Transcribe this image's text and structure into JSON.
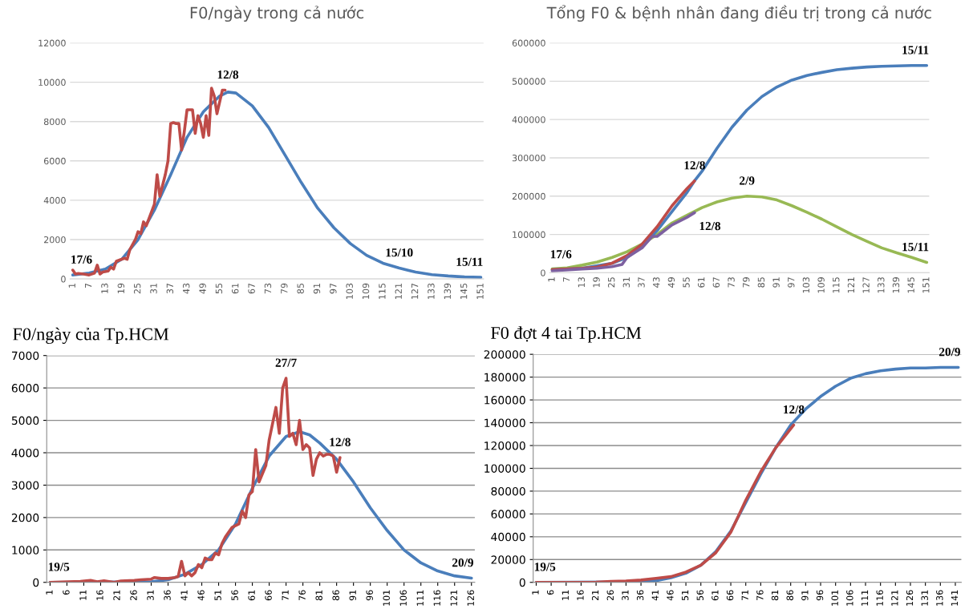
{
  "chart_data": [
    {
      "type": "line",
      "title": "F0/ngày trong cả nước",
      "xlim": [
        0,
        152
      ],
      "xticks": [
        1,
        7,
        13,
        19,
        25,
        31,
        37,
        43,
        49,
        55,
        61,
        67,
        73,
        79,
        85,
        91,
        97,
        103,
        109,
        115,
        121,
        127,
        133,
        139,
        145,
        151
      ],
      "ylim": [
        0,
        12000
      ],
      "yticks": [
        0,
        2000,
        4000,
        6000,
        8000,
        10000,
        12000
      ],
      "grid": "y",
      "legend": false,
      "series": [
        {
          "color": "#4a7ebb",
          "x": [
            1,
            7,
            13,
            19,
            25,
            31,
            37,
            43,
            49,
            55,
            58,
            61,
            67,
            73,
            79,
            85,
            91,
            97,
            103,
            109,
            115,
            121,
            127,
            133,
            139,
            145,
            151
          ],
          "values": [
            200,
            300,
            500,
            1000,
            2000,
            3500,
            5300,
            7200,
            8500,
            9300,
            9500,
            9450,
            8800,
            7700,
            6300,
            4900,
            3600,
            2600,
            1800,
            1200,
            800,
            550,
            350,
            220,
            150,
            100,
            80
          ]
        },
        {
          "color": "#be4b48",
          "x": [
            1,
            2,
            3,
            5,
            7,
            9,
            10,
            11,
            12,
            14,
            15,
            16,
            17,
            18,
            19,
            20,
            21,
            22,
            24,
            25,
            26,
            27,
            28,
            31,
            32,
            33,
            35,
            36,
            37,
            38,
            39,
            40,
            41,
            42,
            43,
            44,
            45,
            46,
            47,
            48,
            49,
            50,
            51,
            52,
            53,
            54,
            55,
            56,
            57
          ],
          "values": [
            450,
            250,
            280,
            250,
            200,
            300,
            700,
            250,
            350,
            400,
            600,
            500,
            900,
            950,
            1000,
            1050,
            1000,
            1500,
            2000,
            2400,
            2300,
            2900,
            2700,
            3800,
            5300,
            4200,
            5300,
            6000,
            7900,
            7950,
            7900,
            7900,
            6550,
            7500,
            8600,
            8600,
            8600,
            7400,
            8300,
            7900,
            7200,
            8300,
            7300,
            9700,
            9300,
            8400,
            9000,
            9600,
            9600
          ]
        }
      ],
      "annotations": [
        {
          "text": "17/6",
          "x": 1,
          "y": 200
        },
        {
          "text": "12/8",
          "x": 58,
          "y": 9600
        },
        {
          "text": "15/10",
          "x": 121,
          "y": 550
        },
        {
          "text": "15/11",
          "x": 151,
          "y": 80
        }
      ]
    },
    {
      "type": "line",
      "title": "Tổng F0 & bệnh nhân đang điều trị trong cả nước",
      "xlim": [
        0,
        152
      ],
      "xticks": [
        1,
        7,
        13,
        19,
        25,
        31,
        37,
        43,
        49,
        55,
        61,
        67,
        73,
        79,
        85,
        91,
        97,
        103,
        109,
        115,
        121,
        127,
        133,
        139,
        145,
        151
      ],
      "ylim": [
        0,
        600000
      ],
      "yticks": [
        0,
        100000,
        200000,
        300000,
        400000,
        500000,
        600000
      ],
      "grid": "y",
      "legend": false,
      "series": [
        {
          "color": "#98b954",
          "x": [
            1,
            7,
            13,
            19,
            25,
            31,
            37,
            43,
            49,
            55,
            61,
            67,
            73,
            79,
            85,
            91,
            97,
            103,
            109,
            115,
            121,
            127,
            133,
            139,
            145,
            151
          ],
          "values": [
            10000,
            13000,
            20000,
            28000,
            40000,
            55000,
            75000,
            100000,
            130000,
            150000,
            170000,
            185000,
            195000,
            200000,
            198000,
            190000,
            175000,
            158000,
            140000,
            120000,
            100000,
            82000,
            65000,
            52000,
            40000,
            27000
          ]
        },
        {
          "color": "#4a7ebb",
          "x": [
            1,
            13,
            25,
            31,
            37,
            43,
            49,
            55,
            58,
            61,
            67,
            73,
            79,
            85,
            91,
            97,
            103,
            109,
            115,
            121,
            127,
            133,
            139,
            145,
            151
          ],
          "values": [
            8000,
            12000,
            25000,
            40000,
            70000,
            110000,
            160000,
            210000,
            240000,
            265000,
            325000,
            380000,
            425000,
            460000,
            485000,
            503000,
            515000,
            523000,
            530000,
            534000,
            537000,
            539000,
            540000,
            541000,
            541000
          ]
        },
        {
          "color": "#be4b48",
          "x": [
            1,
            13,
            19,
            25,
            31,
            37,
            43,
            49,
            55,
            58
          ],
          "values": [
            8000,
            12000,
            15000,
            25000,
            45000,
            75000,
            120000,
            175000,
            220000,
            240000
          ]
        },
        {
          "color": "#7d60a0",
          "x": [
            1,
            13,
            19,
            25,
            29,
            31,
            37,
            41,
            43,
            49,
            55,
            58
          ],
          "values": [
            5000,
            10000,
            12000,
            16000,
            22000,
            40000,
            65000,
            95000,
            95000,
            125000,
            145000,
            157000
          ]
        }
      ],
      "annotations": [
        {
          "text": "17/6",
          "x": 1,
          "y": 8000
        },
        {
          "text": "12/8",
          "x": 58,
          "y": 240000
        },
        {
          "text": "12/8",
          "x": 58,
          "y": 157000
        },
        {
          "text": "2/9",
          "x": 79,
          "y": 200000
        },
        {
          "text": "15/11",
          "x": 151,
          "y": 541000
        },
        {
          "text": "15/11",
          "x": 151,
          "y": 27000
        }
      ]
    },
    {
      "type": "line",
      "title": "F0/ngày của Tp.HCM",
      "xlim": [
        0,
        127
      ],
      "xticks": [
        1,
        6,
        11,
        16,
        21,
        26,
        31,
        36,
        41,
        46,
        51,
        56,
        61,
        66,
        71,
        76,
        81,
        86,
        91,
        96,
        101,
        106,
        111,
        116,
        121,
        126
      ],
      "ylim": [
        0,
        7000
      ],
      "yticks": [
        0,
        1000,
        2000,
        3000,
        4000,
        5000,
        6000,
        7000
      ],
      "grid": "y",
      "legend": false,
      "series": [
        {
          "color": "#4a7ebb",
          "x": [
            1,
            31,
            36,
            41,
            46,
            51,
            56,
            61,
            66,
            71,
            75,
            78,
            81,
            86,
            91,
            96,
            101,
            106,
            111,
            116,
            121,
            126
          ],
          "values": [
            0,
            20,
            80,
            250,
            550,
            1000,
            1800,
            2900,
            3900,
            4500,
            4650,
            4550,
            4300,
            3800,
            3100,
            2300,
            1600,
            1000,
            600,
            350,
            200,
            130
          ]
        },
        {
          "color": "#be4b48",
          "x": [
            1,
            10,
            13,
            15,
            17,
            20,
            22,
            26,
            28,
            31,
            32,
            34,
            36,
            38,
            39,
            40,
            41,
            42,
            43,
            44,
            45,
            46,
            47,
            48,
            49,
            50,
            51,
            52,
            53,
            55,
            57,
            58,
            59,
            60,
            61,
            62,
            63,
            65,
            66,
            67,
            68,
            69,
            70,
            71,
            72,
            73,
            74,
            75,
            76,
            77,
            78,
            79,
            80,
            81,
            82,
            83,
            84,
            85,
            86,
            87
          ],
          "values": [
            0,
            30,
            60,
            20,
            50,
            0,
            40,
            60,
            80,
            100,
            150,
            120,
            120,
            150,
            180,
            650,
            200,
            300,
            200,
            300,
            550,
            450,
            750,
            700,
            700,
            900,
            850,
            1200,
            1400,
            1700,
            1800,
            2200,
            2000,
            2700,
            2800,
            4100,
            3100,
            3600,
            4400,
            4900,
            5400,
            4600,
            6000,
            6300,
            4500,
            4600,
            4250,
            5000,
            4100,
            4250,
            4150,
            3300,
            3800,
            4000,
            3900,
            3950,
            3950,
            3900,
            3400,
            3850
          ]
        }
      ],
      "annotations": [
        {
          "text": "19/5",
          "x": 1,
          "y": 0
        },
        {
          "text": "27/7",
          "x": 71,
          "y": 6300
        },
        {
          "text": "12/8",
          "x": 87,
          "y": 3850
        },
        {
          "text": "20/9",
          "x": 126,
          "y": 130
        }
      ]
    },
    {
      "type": "line",
      "title": "F0 đợt 4 tai Tp.HCM",
      "xlim": [
        0,
        143
      ],
      "xticks": [
        1,
        6,
        11,
        16,
        21,
        26,
        31,
        36,
        41,
        46,
        51,
        56,
        61,
        66,
        71,
        76,
        81,
        86,
        91,
        96,
        101,
        106,
        111,
        116,
        121,
        126,
        131,
        136,
        141
      ],
      "ylim": [
        0,
        200000
      ],
      "yticks": [
        0,
        20000,
        40000,
        60000,
        80000,
        100000,
        120000,
        140000,
        160000,
        180000,
        200000
      ],
      "grid": "y",
      "legend": false,
      "series": [
        {
          "color": "#4a7ebb",
          "x": [
            1,
            31,
            36,
            41,
            46,
            51,
            56,
            61,
            66,
            71,
            76,
            81,
            86,
            91,
            96,
            101,
            106,
            111,
            116,
            121,
            126,
            131,
            136,
            142
          ],
          "values": [
            0,
            300,
            800,
            1500,
            4000,
            8000,
            15000,
            27000,
            45000,
            70000,
            95000,
            118000,
            138000,
            152000,
            163000,
            172000,
            179000,
            183000,
            185500,
            187000,
            188000,
            188000,
            188500,
            188500
          ]
        },
        {
          "color": "#be4b48",
          "x": [
            1,
            21,
            26,
            31,
            36,
            41,
            46,
            51,
            56,
            61,
            66,
            71,
            76,
            81,
            87
          ],
          "values": [
            0,
            200,
            800,
            1200,
            2000,
            3500,
            5000,
            9000,
            15000,
            26000,
            44000,
            72000,
            97000,
            118000,
            138000
          ]
        }
      ],
      "annotations": [
        {
          "text": "19/5",
          "x": 1,
          "y": 0
        },
        {
          "text": "12/8",
          "x": 87,
          "y": 138000
        },
        {
          "text": "20/9",
          "x": 142,
          "y": 188500
        }
      ]
    }
  ]
}
